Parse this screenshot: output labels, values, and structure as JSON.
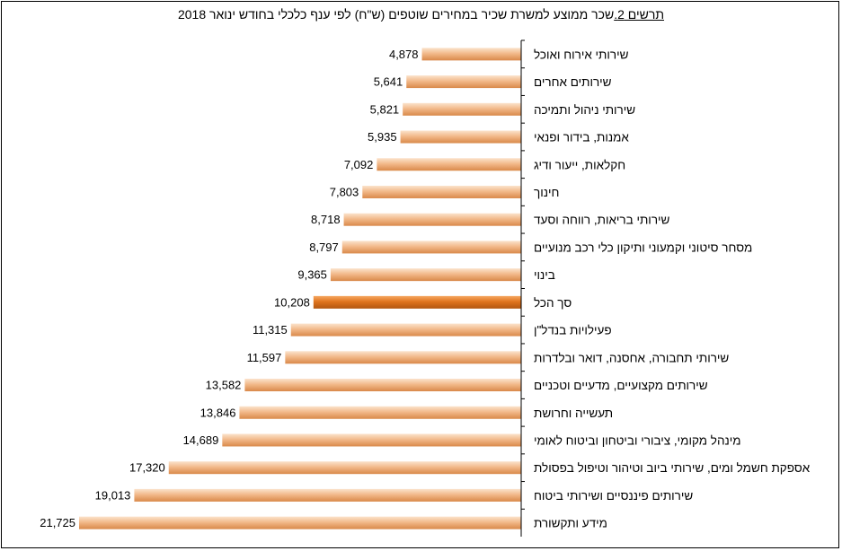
{
  "chart_data": {
    "type": "bar",
    "orientation": "horizontal",
    "title_prefix": "תרשים 2.",
    "title": "שכר ממוצע למשרת שכיר במחירים שוטפים (ש\"ח) לפי ענף כלכלי בחודש ינואר 2018",
    "categories": [
      "שירותי  אירוח ואוכל",
      "שירותים  אחרים",
      "שירותי  ניהול ותמיכה",
      "אמנות, בידור ופנאי",
      "חקלאות, ייעור ודיג",
      "חינוך",
      "שירותי  בריאות,  רווחה וסעד",
      "מסחר סיטוני וקמעוני ותיקון  כלי  רכב מנועיים",
      "בינוי",
      "סך הכל",
      "פעילויות  בנדל\"ן",
      "שירותי  תחבורה, אחסנה, דואר ובלדרות",
      "שירותים  מקצועיים,  מדעיים וטכניים",
      "תעשייה וחרושת",
      "מינהל מקומי,  ציבורי וביטחון וביטוח לאומי",
      "אספקת חשמל ומים,  שירותי  ביוב וטיהור וטיפול בפסולת",
      "שירותים  פיננסיים ושירותי  ביטוח",
      "מידע ותקשורת"
    ],
    "values": [
      4878,
      5641,
      5821,
      5935,
      7092,
      7803,
      8718,
      8797,
      9365,
      10208,
      11315,
      11597,
      13582,
      13846,
      14689,
      17320,
      19013,
      21725
    ],
    "value_labels": [
      "4,878",
      "5,641",
      "5,821",
      "5,935",
      "7,092",
      "7,803",
      "8,718",
      "8,797",
      "9,365",
      "10,208",
      "11,315",
      "11,597",
      "13,582",
      "13,846",
      "14,689",
      "17,320",
      "19,013",
      "21,725"
    ],
    "highlight_category": "סך הכל",
    "xlim": [
      0,
      21725
    ],
    "grid": false,
    "colors": {
      "bar_light": "#fbe3cc",
      "bar_mid": "#f2b98a",
      "bar_dark": "#d9894a",
      "total_light": "#f5a862",
      "total_mid": "#e0741e",
      "total_dark": "#b2560f",
      "axis": "#000000"
    }
  }
}
